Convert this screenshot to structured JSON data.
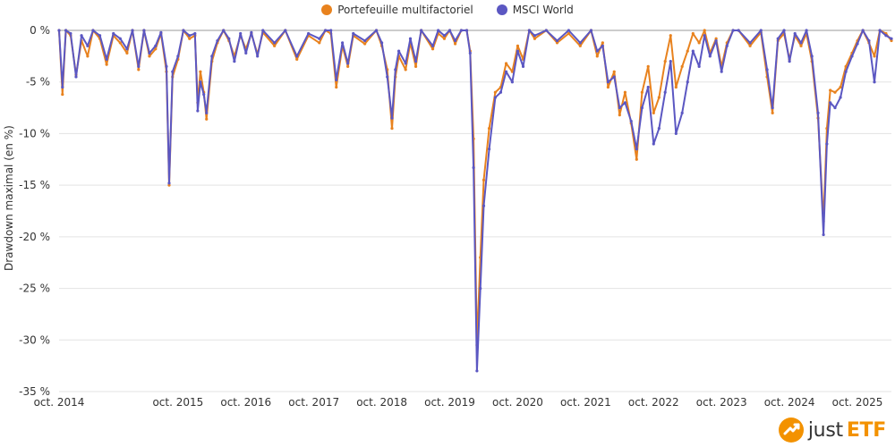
{
  "chart_data": {
    "type": "line",
    "ylabel": "Drawdown maximal (en %)",
    "ylim": [
      -35,
      0
    ],
    "yticks": [
      0,
      -5,
      -10,
      -15,
      -20,
      -25,
      -30,
      -35
    ],
    "ytick_labels": [
      "0 %",
      "-5 %",
      "-10 %",
      "-15 %",
      "-20 %",
      "-25 %",
      "-30 %",
      "-35 %"
    ],
    "xlim": [
      2014.0,
      2026.25
    ],
    "xtick_positions": [
      2014.0,
      2015.75,
      2016.75,
      2017.75,
      2018.75,
      2019.75,
      2020.75,
      2021.75,
      2022.75,
      2023.75,
      2024.75,
      2025.75
    ],
    "xtick_labels": [
      "oct. 2014",
      "oct. 2015",
      "oct. 2016",
      "oct. 2017",
      "oct. 2018",
      "oct. 2019",
      "oct. 2020",
      "oct. 2021",
      "oct. 2022",
      "oct. 2023",
      "oct. 2024",
      "oct. 2025"
    ],
    "grid": true,
    "legend_position": "top-center",
    "series": [
      {
        "name": "Portefeuille multifactoriel",
        "color": "#e8821e",
        "points": [
          [
            2014.0,
            0
          ],
          [
            2014.05,
            -6.2
          ],
          [
            2014.1,
            0
          ],
          [
            2014.17,
            -0.5
          ],
          [
            2014.25,
            -4.3
          ],
          [
            2014.33,
            -1
          ],
          [
            2014.42,
            -2.5
          ],
          [
            2014.5,
            0
          ],
          [
            2014.6,
            -0.8
          ],
          [
            2014.7,
            -3.3
          ],
          [
            2014.8,
            -0.5
          ],
          [
            2014.9,
            -1.2
          ],
          [
            2015.0,
            -2.2
          ],
          [
            2015.08,
            0
          ],
          [
            2015.17,
            -3.8
          ],
          [
            2015.25,
            0
          ],
          [
            2015.33,
            -2.5
          ],
          [
            2015.42,
            -1.8
          ],
          [
            2015.5,
            -0.3
          ],
          [
            2015.58,
            -4
          ],
          [
            2015.62,
            -15
          ],
          [
            2015.67,
            -4.5
          ],
          [
            2015.75,
            -2.8
          ],
          [
            2015.83,
            0
          ],
          [
            2015.92,
            -0.8
          ],
          [
            2016.0,
            -0.5
          ],
          [
            2016.04,
            -7
          ],
          [
            2016.08,
            -4
          ],
          [
            2016.13,
            -6
          ],
          [
            2016.17,
            -8.6
          ],
          [
            2016.25,
            -3
          ],
          [
            2016.33,
            -1.2
          ],
          [
            2016.42,
            0
          ],
          [
            2016.5,
            -1
          ],
          [
            2016.58,
            -2.5
          ],
          [
            2016.67,
            -0.5
          ],
          [
            2016.75,
            -1.8
          ],
          [
            2016.83,
            -0.3
          ],
          [
            2016.92,
            -2.3
          ],
          [
            2017.0,
            -0.2
          ],
          [
            2017.17,
            -1.5
          ],
          [
            2017.33,
            0
          ],
          [
            2017.5,
            -2.8
          ],
          [
            2017.67,
            -0.5
          ],
          [
            2017.83,
            -1.2
          ],
          [
            2017.92,
            0
          ],
          [
            2018.0,
            -0.3
          ],
          [
            2018.08,
            -5.5
          ],
          [
            2018.17,
            -1.5
          ],
          [
            2018.25,
            -3.5
          ],
          [
            2018.33,
            -0.5
          ],
          [
            2018.5,
            -1.3
          ],
          [
            2018.67,
            0
          ],
          [
            2018.75,
            -1.5
          ],
          [
            2018.83,
            -3.8
          ],
          [
            2018.9,
            -9.5
          ],
          [
            2018.95,
            -4.5
          ],
          [
            2019.0,
            -2.5
          ],
          [
            2019.1,
            -3.8
          ],
          [
            2019.17,
            -1.2
          ],
          [
            2019.25,
            -3.5
          ],
          [
            2019.33,
            0
          ],
          [
            2019.5,
            -1.8
          ],
          [
            2019.58,
            -0.3
          ],
          [
            2019.67,
            -0.8
          ],
          [
            2019.75,
            0
          ],
          [
            2019.83,
            -1.3
          ],
          [
            2019.92,
            0
          ],
          [
            2020.0,
            0
          ],
          [
            2020.05,
            -2
          ],
          [
            2020.1,
            -10.5
          ],
          [
            2020.15,
            -30.5
          ],
          [
            2020.2,
            -22
          ],
          [
            2020.25,
            -14.5
          ],
          [
            2020.33,
            -9.5
          ],
          [
            2020.42,
            -6
          ],
          [
            2020.5,
            -5.5
          ],
          [
            2020.58,
            -3.2
          ],
          [
            2020.67,
            -4
          ],
          [
            2020.75,
            -1.5
          ],
          [
            2020.83,
            -2.8
          ],
          [
            2020.92,
            0
          ],
          [
            2021.0,
            -0.8
          ],
          [
            2021.17,
            0
          ],
          [
            2021.33,
            -1.2
          ],
          [
            2021.5,
            -0.3
          ],
          [
            2021.67,
            -1.5
          ],
          [
            2021.83,
            0
          ],
          [
            2021.92,
            -2.5
          ],
          [
            2022.0,
            -1.2
          ],
          [
            2022.08,
            -5.5
          ],
          [
            2022.17,
            -4
          ],
          [
            2022.25,
            -8.2
          ],
          [
            2022.33,
            -6
          ],
          [
            2022.42,
            -9
          ],
          [
            2022.5,
            -12.5
          ],
          [
            2022.58,
            -6
          ],
          [
            2022.67,
            -3.5
          ],
          [
            2022.75,
            -8
          ],
          [
            2022.83,
            -6.5
          ],
          [
            2022.92,
            -3
          ],
          [
            2023.0,
            -0.5
          ],
          [
            2023.08,
            -5.5
          ],
          [
            2023.17,
            -3.5
          ],
          [
            2023.25,
            -2
          ],
          [
            2023.33,
            -0.3
          ],
          [
            2023.42,
            -1.2
          ],
          [
            2023.5,
            0
          ],
          [
            2023.58,
            -2.2
          ],
          [
            2023.67,
            -0.8
          ],
          [
            2023.75,
            -3.5
          ],
          [
            2023.83,
            -1.2
          ],
          [
            2023.92,
            0
          ],
          [
            2024.0,
            0
          ],
          [
            2024.17,
            -1.5
          ],
          [
            2024.33,
            -0.2
          ],
          [
            2024.42,
            -4.5
          ],
          [
            2024.5,
            -8
          ],
          [
            2024.58,
            -1
          ],
          [
            2024.67,
            -0.3
          ],
          [
            2024.75,
            -2.8
          ],
          [
            2024.83,
            -0.5
          ],
          [
            2024.92,
            -1.5
          ],
          [
            2025.0,
            -0.3
          ],
          [
            2025.08,
            -3
          ],
          [
            2025.17,
            -8.5
          ],
          [
            2025.25,
            -18.5
          ],
          [
            2025.3,
            -9.5
          ],
          [
            2025.35,
            -5.8
          ],
          [
            2025.42,
            -6
          ],
          [
            2025.5,
            -5.5
          ],
          [
            2025.58,
            -3.5
          ],
          [
            2025.67,
            -2.2
          ],
          [
            2025.75,
            -1
          ],
          [
            2025.83,
            0
          ],
          [
            2025.92,
            -1.2
          ],
          [
            2026.0,
            -2.5
          ],
          [
            2026.08,
            0
          ],
          [
            2026.17,
            -0.3
          ],
          [
            2026.25,
            -1
          ]
        ]
      },
      {
        "name": "MSCI World",
        "color": "#5b57c2",
        "points": [
          [
            2014.0,
            0
          ],
          [
            2014.05,
            -5.5
          ],
          [
            2014.1,
            0
          ],
          [
            2014.17,
            -0.3
          ],
          [
            2014.25,
            -4.5
          ],
          [
            2014.33,
            -0.5
          ],
          [
            2014.42,
            -1.5
          ],
          [
            2014.5,
            0
          ],
          [
            2014.6,
            -0.5
          ],
          [
            2014.7,
            -2.8
          ],
          [
            2014.8,
            -0.3
          ],
          [
            2014.9,
            -0.8
          ],
          [
            2015.0,
            -1.8
          ],
          [
            2015.08,
            0
          ],
          [
            2015.17,
            -3.5
          ],
          [
            2015.25,
            0
          ],
          [
            2015.33,
            -2.2
          ],
          [
            2015.42,
            -1.5
          ],
          [
            2015.5,
            -0.2
          ],
          [
            2015.58,
            -3.5
          ],
          [
            2015.62,
            -14.8
          ],
          [
            2015.67,
            -4
          ],
          [
            2015.75,
            -2.5
          ],
          [
            2015.83,
            0
          ],
          [
            2015.92,
            -0.5
          ],
          [
            2016.0,
            -0.3
          ],
          [
            2016.04,
            -7.8
          ],
          [
            2016.08,
            -5
          ],
          [
            2016.13,
            -6.2
          ],
          [
            2016.17,
            -8
          ],
          [
            2016.25,
            -2.5
          ],
          [
            2016.33,
            -1
          ],
          [
            2016.42,
            0
          ],
          [
            2016.5,
            -0.8
          ],
          [
            2016.58,
            -3
          ],
          [
            2016.67,
            -0.3
          ],
          [
            2016.75,
            -2.2
          ],
          [
            2016.83,
            -0.2
          ],
          [
            2016.92,
            -2.5
          ],
          [
            2017.0,
            0
          ],
          [
            2017.17,
            -1.2
          ],
          [
            2017.33,
            0
          ],
          [
            2017.5,
            -2.5
          ],
          [
            2017.67,
            -0.3
          ],
          [
            2017.83,
            -0.8
          ],
          [
            2017.92,
            0
          ],
          [
            2018.0,
            0
          ],
          [
            2018.08,
            -4.8
          ],
          [
            2018.17,
            -1.2
          ],
          [
            2018.25,
            -3.2
          ],
          [
            2018.33,
            -0.3
          ],
          [
            2018.5,
            -1
          ],
          [
            2018.67,
            0
          ],
          [
            2018.75,
            -1.2
          ],
          [
            2018.83,
            -4.5
          ],
          [
            2018.9,
            -8.5
          ],
          [
            2018.95,
            -3.8
          ],
          [
            2019.0,
            -2
          ],
          [
            2019.1,
            -3.2
          ],
          [
            2019.17,
            -0.8
          ],
          [
            2019.25,
            -3
          ],
          [
            2019.33,
            0
          ],
          [
            2019.5,
            -1.5
          ],
          [
            2019.58,
            0
          ],
          [
            2019.67,
            -0.5
          ],
          [
            2019.75,
            0
          ],
          [
            2019.83,
            -1
          ],
          [
            2019.92,
            0
          ],
          [
            2020.0,
            0
          ],
          [
            2020.05,
            -2.2
          ],
          [
            2020.1,
            -13.3
          ],
          [
            2020.15,
            -33
          ],
          [
            2020.2,
            -25
          ],
          [
            2020.25,
            -17
          ],
          [
            2020.33,
            -11.5
          ],
          [
            2020.42,
            -6.5
          ],
          [
            2020.5,
            -6
          ],
          [
            2020.58,
            -4
          ],
          [
            2020.67,
            -5
          ],
          [
            2020.75,
            -2
          ],
          [
            2020.83,
            -3.5
          ],
          [
            2020.92,
            0
          ],
          [
            2021.0,
            -0.5
          ],
          [
            2021.17,
            0
          ],
          [
            2021.33,
            -1
          ],
          [
            2021.5,
            0
          ],
          [
            2021.67,
            -1.2
          ],
          [
            2021.83,
            0
          ],
          [
            2021.92,
            -2
          ],
          [
            2022.0,
            -1.5
          ],
          [
            2022.08,
            -5
          ],
          [
            2022.17,
            -4.5
          ],
          [
            2022.25,
            -7.5
          ],
          [
            2022.33,
            -7
          ],
          [
            2022.42,
            -8.8
          ],
          [
            2022.5,
            -11.5
          ],
          [
            2022.58,
            -7.5
          ],
          [
            2022.67,
            -5.5
          ],
          [
            2022.75,
            -11
          ],
          [
            2022.83,
            -9.5
          ],
          [
            2022.92,
            -6
          ],
          [
            2023.0,
            -3
          ],
          [
            2023.08,
            -10
          ],
          [
            2023.17,
            -8
          ],
          [
            2023.25,
            -5
          ],
          [
            2023.33,
            -2
          ],
          [
            2023.42,
            -3.5
          ],
          [
            2023.5,
            -0.5
          ],
          [
            2023.58,
            -2.5
          ],
          [
            2023.67,
            -1
          ],
          [
            2023.75,
            -4
          ],
          [
            2023.83,
            -1.5
          ],
          [
            2023.92,
            0
          ],
          [
            2024.0,
            0
          ],
          [
            2024.17,
            -1.2
          ],
          [
            2024.33,
            0
          ],
          [
            2024.42,
            -3.8
          ],
          [
            2024.5,
            -7.5
          ],
          [
            2024.58,
            -0.8
          ],
          [
            2024.67,
            0
          ],
          [
            2024.75,
            -3
          ],
          [
            2024.83,
            -0.3
          ],
          [
            2024.92,
            -1.2
          ],
          [
            2025.0,
            0
          ],
          [
            2025.08,
            -2.5
          ],
          [
            2025.17,
            -8
          ],
          [
            2025.25,
            -19.8
          ],
          [
            2025.3,
            -11
          ],
          [
            2025.35,
            -7
          ],
          [
            2025.42,
            -7.5
          ],
          [
            2025.5,
            -6.5
          ],
          [
            2025.58,
            -4
          ],
          [
            2025.67,
            -2.5
          ],
          [
            2025.75,
            -1.3
          ],
          [
            2025.83,
            0
          ],
          [
            2025.92,
            -1
          ],
          [
            2026.0,
            -5
          ],
          [
            2026.08,
            0
          ],
          [
            2026.17,
            -0.5
          ],
          [
            2026.25,
            -0.8
          ]
        ]
      }
    ]
  },
  "logo": {
    "prefix": "just",
    "suffix": "ETF"
  }
}
